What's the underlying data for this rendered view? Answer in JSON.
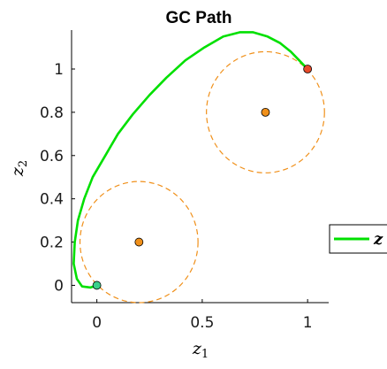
{
  "chart_data": {
    "type": "line",
    "title": "GC Path",
    "xlabel": "z",
    "xlabel_sub": "1",
    "ylabel": "z",
    "ylabel_sub": "2",
    "xlim": [
      -0.12,
      1.1
    ],
    "ylim": [
      -0.08,
      1.18
    ],
    "xticks": [
      0,
      0.5,
      1
    ],
    "xtick_labels": [
      "0",
      "0.5",
      "1"
    ],
    "yticks": [
      0,
      0.2,
      0.4,
      0.6,
      0.8,
      1
    ],
    "ytick_labels": [
      "0",
      "0.2",
      "0.4",
      "0.6",
      "0.8",
      "1"
    ],
    "grid": false,
    "legend_position": "right",
    "series": [
      {
        "name": "z",
        "color": "#00e000",
        "x": [
          0.0,
          -0.03,
          -0.07,
          -0.095,
          -0.11,
          -0.105,
          -0.09,
          -0.06,
          -0.02,
          0.04,
          0.1,
          0.17,
          0.25,
          0.33,
          0.42,
          0.51,
          0.6,
          0.68,
          0.74,
          0.81,
          0.87,
          0.92,
          0.96,
          0.99,
          1.0
        ],
        "y": [
          0.0,
          -0.01,
          -0.005,
          0.03,
          0.1,
          0.2,
          0.3,
          0.4,
          0.5,
          0.6,
          0.7,
          0.79,
          0.88,
          0.96,
          1.04,
          1.1,
          1.15,
          1.17,
          1.17,
          1.15,
          1.12,
          1.08,
          1.04,
          1.01,
          1.0
        ]
      }
    ],
    "circles": [
      {
        "center": [
          0.2,
          0.2
        ],
        "radius": 0.28,
        "color": "#f0901a"
      },
      {
        "center": [
          0.8,
          0.8
        ],
        "radius": 0.28,
        "color": "#f0901a"
      }
    ],
    "points": [
      {
        "x": 0.2,
        "y": 0.2,
        "fill": "#f0901a"
      },
      {
        "x": 0.8,
        "y": 0.8,
        "fill": "#f0901a"
      },
      {
        "x": 0.0,
        "y": 0.0,
        "fill": "#3ad08a"
      },
      {
        "x": 1.0,
        "y": 1.0,
        "fill": "#e84a2a"
      }
    ]
  }
}
